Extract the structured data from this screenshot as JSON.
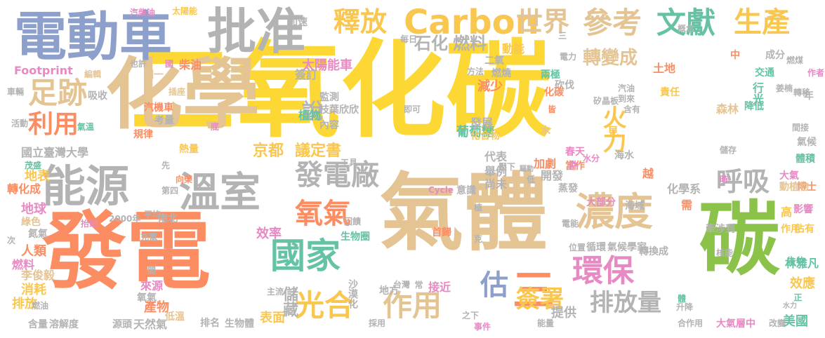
{
  "palette": {
    "yellow": "#fdd835",
    "gold": "#f9c74f",
    "orange": "#fc8d62",
    "green": "#8bc34a",
    "teal": "#66c2a5",
    "blue": "#8da0cb",
    "pink": "#e78ac3",
    "tan": "#e5c494",
    "gray": "#b3b3b3",
    "darkgray": "#a3a3a3",
    "lime": "#a6d854"
  },
  "words": [
    {
      "text": "二氧化碳",
      "color": "yellow"
    },
    {
      "text": "化學",
      "color": "tan"
    },
    {
      "text": "發電",
      "color": "orange"
    },
    {
      "text": "氣體",
      "color": "tan"
    },
    {
      "text": "碳",
      "color": "green"
    },
    {
      "text": "電動車",
      "color": "blue"
    },
    {
      "text": "批准",
      "color": "gray"
    },
    {
      "text": "能源",
      "color": "gray"
    },
    {
      "text": "溫室",
      "color": "gray"
    },
    {
      "text": "國家",
      "color": "teal"
    },
    {
      "text": "濃度",
      "color": "tan"
    },
    {
      "text": "環保",
      "color": "pink"
    },
    {
      "text": "參考",
      "color": "tan"
    },
    {
      "text": "文獻",
      "color": "teal"
    },
    {
      "text": "生產",
      "color": "gold"
    },
    {
      "text": "Carbon",
      "color": "gold"
    },
    {
      "text": "世界",
      "color": "tan"
    },
    {
      "text": "釋放",
      "color": "gold"
    },
    {
      "text": "足跡",
      "color": "tan"
    },
    {
      "text": "利用",
      "color": "orange"
    },
    {
      "text": "發電廠",
      "color": "gray"
    },
    {
      "text": "氧氣",
      "color": "orange"
    },
    {
      "text": "光合",
      "color": "gold"
    },
    {
      "text": "作用",
      "color": "tan"
    },
    {
      "text": "三",
      "color": "orange"
    },
    {
      "text": "估",
      "color": "blue"
    },
    {
      "text": "簽署",
      "color": "gold"
    },
    {
      "text": "排放量",
      "color": "gray"
    },
    {
      "text": "呼吸",
      "color": "gray"
    },
    {
      "text": "轉變成",
      "color": "tan"
    },
    {
      "text": "說",
      "color": "gray"
    },
    {
      "text": "火力",
      "color": "gold"
    },
    {
      "text": "京都",
      "color": "gold"
    },
    {
      "text": "議定書",
      "color": "gold"
    },
    {
      "text": "石化",
      "color": "gray"
    },
    {
      "text": "燃料",
      "color": "gray"
    },
    {
      "text": "太陽能車",
      "color": "pink"
    },
    {
      "text": "Footprint",
      "color": "pink"
    },
    {
      "text": "國立臺灣大學",
      "color": "gray"
    },
    {
      "text": "地表",
      "color": "gold"
    },
    {
      "text": "地球",
      "color": "pink"
    },
    {
      "text": "轉化成",
      "color": "orange"
    },
    {
      "text": "人類",
      "color": "orange"
    },
    {
      "text": "排放",
      "color": "gold"
    },
    {
      "text": "消耗",
      "color": "gold"
    },
    {
      "text": "李俊毅",
      "color": "tan"
    },
    {
      "text": "燃料",
      "color": "pink"
    },
    {
      "text": "綠色",
      "color": "tan"
    },
    {
      "text": "氮氣",
      "color": "gray"
    },
    {
      "text": "溶解度",
      "color": "gray"
    },
    {
      "text": "源頭",
      "color": "gray"
    },
    {
      "text": "天然氣",
      "color": "gray"
    },
    {
      "text": "含量",
      "color": "gray"
    },
    {
      "text": "產物",
      "color": "orange"
    },
    {
      "text": "氧氣",
      "color": "gray"
    },
    {
      "text": "來源",
      "color": "pink"
    },
    {
      "text": "低溫",
      "color": "tan"
    },
    {
      "text": "排名",
      "color": "gray"
    },
    {
      "text": "生物體",
      "color": "gray"
    },
    {
      "text": "表面",
      "color": "gold"
    },
    {
      "text": "儲藏",
      "color": "gray"
    },
    {
      "text": "效率",
      "color": "pink"
    },
    {
      "text": "沙漠化",
      "color": "gray"
    },
    {
      "text": "接近",
      "color": "pink"
    },
    {
      "text": "提供",
      "color": "gray"
    },
    {
      "text": "效應",
      "color": "gold"
    },
    {
      "text": "美國",
      "color": "teal"
    },
    {
      "text": "林雅凡",
      "color": "teal"
    },
    {
      "text": "大氣層中",
      "color": "pink"
    },
    {
      "text": "改變",
      "color": "gray"
    },
    {
      "text": "合作用",
      "color": "gray"
    },
    {
      "text": "轉換成",
      "color": "gray"
    },
    {
      "text": "佔有",
      "color": "gold"
    },
    {
      "text": "作用",
      "color": "gold"
    },
    {
      "text": "高",
      "color": "gold"
    },
    {
      "text": "影響",
      "color": "pink"
    },
    {
      "text": "博士",
      "color": "orange"
    },
    {
      "text": "動植物",
      "color": "tan"
    },
    {
      "text": "大氣",
      "color": "pink"
    },
    {
      "text": "化學系",
      "color": "gray"
    },
    {
      "text": "海域",
      "color": "gray"
    },
    {
      "text": "大部分",
      "color": "pink"
    },
    {
      "text": "蒸發",
      "color": "gray"
    },
    {
      "text": "開發",
      "color": "gray"
    },
    {
      "text": "循環",
      "color": "gray"
    },
    {
      "text": "氣候學家",
      "color": "gray"
    },
    {
      "text": "牽涉到",
      "color": "gray"
    },
    {
      "text": "需",
      "color": "orange"
    },
    {
      "text": "葡萄糖",
      "color": "teal"
    },
    {
      "text": "森林",
      "color": "tan"
    },
    {
      "text": "發展",
      "color": "gray"
    },
    {
      "text": "化合物",
      "color": "gold"
    },
    {
      "text": "減少",
      "color": "orange"
    },
    {
      "text": "植物",
      "color": "teal"
    },
    {
      "text": "簽訂",
      "color": "gray"
    },
    {
      "text": "監測",
      "color": "gray"
    },
    {
      "text": "枝葉欣欣",
      "color": "gray"
    },
    {
      "text": "內容",
      "color": "gray"
    },
    {
      "text": "代表",
      "color": "gray"
    },
    {
      "text": "舉例",
      "color": "gray"
    },
    {
      "text": "尚未",
      "color": "gray"
    },
    {
      "text": "海水",
      "color": "gray"
    },
    {
      "text": "越",
      "color": "orange"
    },
    {
      "text": "土地",
      "color": "orange"
    },
    {
      "text": "責任",
      "color": "gold"
    },
    {
      "text": "降低",
      "color": "teal"
    },
    {
      "text": "交通",
      "color": "teal"
    },
    {
      "text": "行光",
      "color": "teal"
    },
    {
      "text": "兩極",
      "color": "teal"
    },
    {
      "text": "砍伐",
      "color": "gray"
    },
    {
      "text": "動能",
      "color": "gold"
    },
    {
      "text": "燃燒",
      "color": "gray"
    },
    {
      "text": "方法",
      "color": "gray"
    },
    {
      "text": "二氧",
      "color": "gray"
    },
    {
      "text": "圖一",
      "color": "tan"
    },
    {
      "text": "柴油",
      "color": "orange"
    },
    {
      "text": "汽機車",
      "color": "orange"
    },
    {
      "text": "考量",
      "color": "gray"
    },
    {
      "text": "規律",
      "color": "orange"
    },
    {
      "text": "熱量",
      "color": "gold"
    },
    {
      "text": "成分",
      "color": "gray"
    },
    {
      "text": "燃煤",
      "color": "gray"
    },
    {
      "text": "作者",
      "color": "pink"
    },
    {
      "text": "中",
      "color": "orange"
    },
    {
      "text": "加速",
      "color": "gray"
    },
    {
      "text": "每日",
      "color": "gray"
    },
    {
      "text": "概念",
      "color": "gray"
    },
    {
      "text": "汽柴油",
      "color": "pink"
    },
    {
      "text": "太陽能",
      "color": "gold"
    },
    {
      "text": "編輯",
      "color": "tan"
    },
    {
      "text": "吸收",
      "color": "gray"
    },
    {
      "text": "也許",
      "color": "gray"
    },
    {
      "text": "活動",
      "color": "gray"
    },
    {
      "text": "氣溫",
      "color": "teal"
    },
    {
      "text": "茂盛",
      "color": "teal"
    },
    {
      "text": "工具",
      "color": "gray"
    },
    {
      "text": "壓下",
      "color": "gray"
    },
    {
      "text": "驅動",
      "color": "gray"
    },
    {
      "text": "加劇",
      "color": "orange"
    },
    {
      "text": "春天",
      "color": "pink"
    },
    {
      "text": "當作",
      "color": "orange"
    },
    {
      "text": "水分",
      "color": "pink"
    },
    {
      "text": "見",
      "color": "gold"
    },
    {
      "text": "氣候",
      "color": "gray"
    },
    {
      "text": "體積",
      "color": "teal"
    },
    {
      "text": "間接",
      "color": "gray"
    },
    {
      "text": "Cycle",
      "color": "pink"
    },
    {
      "text": "意識",
      "color": "gray"
    },
    {
      "text": "回饋",
      "color": "gray"
    },
    {
      "text": "生物圈",
      "color": "teal"
    },
    {
      "text": "首歸",
      "color": "orange"
    },
    {
      "text": "平均",
      "color": "gray"
    },
    {
      "text": "南北",
      "color": "gray"
    },
    {
      "text": "充電",
      "color": "gray"
    },
    {
      "text": "地方",
      "color": "gray"
    },
    {
      "text": "主流",
      "color": "gray"
    },
    {
      "text": "採用",
      "color": "gray"
    },
    {
      "text": "事件",
      "color": "pink"
    },
    {
      "text": "能量",
      "color": "gray"
    },
    {
      "text": "水力",
      "color": "gray"
    },
    {
      "text": "生物",
      "color": "teal"
    },
    {
      "text": "正",
      "color": "teal"
    },
    {
      "text": "升降",
      "color": "gray"
    },
    {
      "text": "電能",
      "color": "gray"
    },
    {
      "text": "位置",
      "color": "gray"
    },
    {
      "text": "核能",
      "color": "gray"
    },
    {
      "text": "到來",
      "color": "gray"
    },
    {
      "text": "含有",
      "color": "gray"
    },
    {
      "text": "汽油",
      "color": "gray"
    },
    {
      "text": "矽晶板",
      "color": "gray"
    },
    {
      "text": "化碳",
      "color": "orange"
    },
    {
      "text": "2000年",
      "color": "gray"
    },
    {
      "text": "抬頭",
      "color": "pink"
    },
    {
      "text": "第四",
      "color": "gray"
    },
    {
      "text": "向榮",
      "color": "orange"
    },
    {
      "text": "插座",
      "color": "tan"
    },
    {
      "text": "即可",
      "color": "gray"
    },
    {
      "text": "姜楠",
      "color": "gray"
    },
    {
      "text": "轉移",
      "color": "gray"
    },
    {
      "text": "儲存",
      "color": "gray"
    },
    {
      "text": "時",
      "color": "pink"
    },
    {
      "text": "台灣",
      "color": "gray"
    },
    {
      "text": "常",
      "color": "gray"
    },
    {
      "text": "克",
      "color": "gray"
    },
    {
      "text": "之下",
      "color": "gray"
    },
    {
      "text": "低",
      "color": "gray"
    },
    {
      "text": "體",
      "color": "teal"
    },
    {
      "text": "年",
      "color": "gray"
    },
    {
      "text": "件",
      "color": "pink"
    },
    {
      "text": "國",
      "color": "pink"
    },
    {
      "text": "水",
      "color": "tan"
    },
    {
      "text": "皆",
      "color": "orange"
    },
    {
      "text": "植",
      "color": "gray"
    },
    {
      "text": "間",
      "color": "gray"
    },
    {
      "text": "燃油",
      "color": "gray"
    },
    {
      "text": "先",
      "color": "gray"
    },
    {
      "text": "底",
      "color": "pink"
    },
    {
      "text": "車輛",
      "color": "gray"
    },
    {
      "text": "次",
      "color": "gray"
    },
    {
      "text": "三",
      "color": "gray"
    },
    {
      "text": "電力",
      "color": "gray"
    }
  ]
}
